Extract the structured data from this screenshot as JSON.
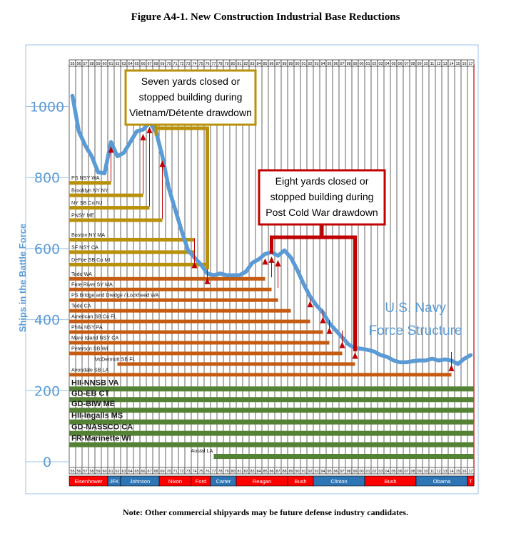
{
  "title": "Figure A4-1.  New Construction Industrial Base Reductions",
  "note": "Note: Other commercial shipyards may be future defense industry candidates.",
  "colors": {
    "force_line": "#5b9bd5",
    "gold": "#b8900a",
    "orange": "#c55a11",
    "green": "#548235",
    "red": "#c00000",
    "blue_admin": "#2e75b6",
    "axis_label": "#5b9bd5"
  },
  "chart_data": {
    "type": "line",
    "title": "Figure A4-1.  New Construction Industrial Base Reductions",
    "ylabel": "Ships in the Battle Force",
    "ylim": [
      0,
      1100
    ],
    "xlim": [
      1955,
      2017
    ],
    "yticks": [
      0,
      200,
      400,
      600,
      800,
      1000
    ],
    "year_labels": [
      "55",
      "56",
      "57",
      "58",
      "59",
      "60",
      "61",
      "62",
      "63",
      "64",
      "65",
      "66",
      "67",
      "68",
      "69",
      "70",
      "71",
      "72",
      "73",
      "74",
      "75",
      "76",
      "77",
      "78",
      "79",
      "80",
      "81",
      "82",
      "83",
      "84",
      "85",
      "86",
      "87",
      "88",
      "89",
      "90",
      "91",
      "92",
      "93",
      "94",
      "95",
      "96",
      "97",
      "98",
      "99",
      "00",
      "01",
      "02",
      "03",
      "04",
      "05",
      "06",
      "07",
      "08",
      "09",
      "10",
      "11",
      "12",
      "13",
      "14",
      "15",
      "16",
      "17"
    ],
    "series": [
      {
        "name": "U.S. Navy Force Structure",
        "x": [
          1955,
          1956,
          1957,
          1958,
          1959,
          1960,
          1961,
          1962,
          1963,
          1964,
          1965,
          1966,
          1967,
          1968,
          1969,
          1970,
          1971,
          1972,
          1973,
          1974,
          1975,
          1976,
          1977,
          1978,
          1979,
          1980,
          1981,
          1982,
          1983,
          1984,
          1985,
          1986,
          1987,
          1988,
          1989,
          1990,
          1991,
          1992,
          1993,
          1994,
          1995,
          1996,
          1997,
          1998,
          1999,
          2000,
          2001,
          2002,
          2003,
          2004,
          2005,
          2006,
          2007,
          2008,
          2009,
          2010,
          2011,
          2012,
          2013,
          2014,
          2015,
          2016,
          2017
        ],
        "y": [
          1030,
          930,
          890,
          860,
          815,
          812,
          900,
          860,
          870,
          900,
          930,
          935,
          955,
          930,
          860,
          770,
          710,
          650,
          595,
          575,
          555,
          530,
          525,
          530,
          525,
          525,
          525,
          535,
          560,
          570,
          585,
          590,
          580,
          595,
          575,
          540,
          500,
          465,
          440,
          420,
          390,
          370,
          350,
          330,
          320,
          318,
          315,
          310,
          300,
          295,
          285,
          280,
          280,
          283,
          285,
          285,
          290,
          285,
          288,
          285,
          275,
          290,
          300
        ]
      }
    ],
    "legend_label": "U.S. Navy\nForce Structure",
    "annotations": [
      {
        "text": "Seven yards closed or stopped building during Vietnam/Détente drawdown",
        "lines": [
          "Seven yards closed or",
          "stopped building during",
          "Vietnam/Détente drawdown"
        ]
      },
      {
        "text": "Eight yards closed or stopped building during Post Cold War drawdown",
        "lines": [
          "Eight yards closed or",
          "stopped building during",
          "Post Cold War drawdown"
        ]
      }
    ],
    "shipyards": [
      {
        "name": "PS NSY WA",
        "end_year": 1961,
        "group": "gold",
        "level": 785
      },
      {
        "name": "Brooklyn NY NY",
        "end_year": 1966,
        "group": "gold",
        "level": 750
      },
      {
        "name": "NY SB Co NJ",
        "end_year": 1967,
        "group": "gold",
        "level": 715
      },
      {
        "name": "PNSY ME",
        "end_year": 1969,
        "group": "gold",
        "level": 680
      },
      {
        "name": "Boston NY MA",
        "end_year": 1974,
        "group": "gold",
        "level": 625
      },
      {
        "name": "SF NSY CA",
        "end_year": 1974,
        "group": "gold",
        "level": 590
      },
      {
        "name": "DeFoe SB Co MI",
        "end_year": 1976,
        "group": "gold",
        "level": 555
      },
      {
        "name": "Todd WA",
        "end_year": 1985,
        "group": "orange",
        "level": 515
      },
      {
        "name": "Fore River SY MA",
        "end_year": 1986,
        "group": "orange",
        "level": 485
      },
      {
        "name": "PS Bridge and Dredge / Lockheed  WA",
        "end_year": 1987,
        "group": "orange",
        "level": 455
      },
      {
        "name": "Todd CA",
        "end_year": 1989,
        "group": "orange",
        "level": 425
      },
      {
        "name": "American SB Co FL",
        "end_year": 1992,
        "group": "orange",
        "level": 395
      },
      {
        "name": "Phila  NSY PA",
        "end_year": 1994,
        "group": "orange",
        "level": 365
      },
      {
        "name": "Mare Island NSY CA",
        "end_year": 1995,
        "group": "orange",
        "level": 335
      },
      {
        "name": "Peterson SB WI",
        "end_year": 1997,
        "group": "orange",
        "level": 305
      },
      {
        "name": "McDermott  SB FL",
        "end_year": 1999,
        "group": "orange",
        "level": 275,
        "start_year": 1962
      },
      {
        "name": "Avondale  SB LA",
        "end_year": 2014,
        "group": "orange",
        "level": 245
      },
      {
        "name": "HII-NNSB VA",
        "end_year": 2017,
        "group": "green",
        "level": 205
      },
      {
        "name": "GD-EB CT",
        "end_year": 2017,
        "group": "green",
        "level": 175
      },
      {
        "name": "GD-BIW ME",
        "end_year": 2017,
        "group": "green",
        "level": 145
      },
      {
        "name": "HII-Ingalls MS",
        "end_year": 2017,
        "group": "green",
        "level": 112
      },
      {
        "name": "GD-NASSCO CA",
        "end_year": 2017,
        "group": "green",
        "level": 80
      },
      {
        "name": "FR-Marinette WI",
        "end_year": 2017,
        "group": "green",
        "level": 48
      },
      {
        "name": "Austal LA",
        "end_year": 2017,
        "group": "green",
        "level": 15,
        "start_year": 1977
      }
    ],
    "closure_arrows": [
      1961,
      1966,
      1967,
      1969,
      1974,
      1976,
      1985,
      1986,
      1987,
      1992,
      1994,
      1995,
      1997,
      1999,
      2014
    ],
    "administrations": [
      {
        "name": "Eisenhower",
        "start": 1955,
        "end": 1961,
        "party": "R"
      },
      {
        "name": "JFK",
        "start": 1961,
        "end": 1963,
        "party": "D"
      },
      {
        "name": "Johnson",
        "start": 1963,
        "end": 1969,
        "party": "D"
      },
      {
        "name": "Nixon",
        "start": 1969,
        "end": 1974,
        "party": "R"
      },
      {
        "name": "Ford",
        "start": 1974,
        "end": 1977,
        "party": "R"
      },
      {
        "name": "Carter",
        "start": 1977,
        "end": 1981,
        "party": "D"
      },
      {
        "name": "Reagan",
        "start": 1981,
        "end": 1989,
        "party": "R"
      },
      {
        "name": "Bush",
        "start": 1989,
        "end": 1993,
        "party": "R"
      },
      {
        "name": "Clinton",
        "start": 1993,
        "end": 2001,
        "party": "D"
      },
      {
        "name": "Bush",
        "start": 2001,
        "end": 2009,
        "party": "R"
      },
      {
        "name": "Obama",
        "start": 2009,
        "end": 2017,
        "party": "D"
      },
      {
        "name": "T",
        "start": 2017,
        "end": 2018,
        "party": "R"
      }
    ]
  }
}
